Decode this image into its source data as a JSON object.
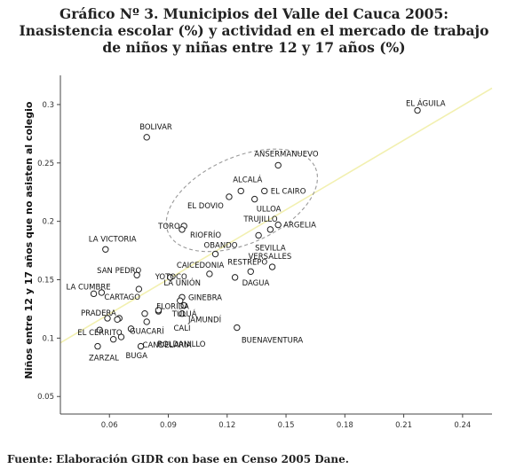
{
  "header": {
    "title_line1": "Gráfico Nº 3. Municipios del Valle del Cauca 2005:",
    "title_line2": "Inasistencia escolar (%) y actividad en el mercado de trabajo",
    "title_line3": "de niños y niñas entre 12 y 17 años (%)"
  },
  "footer": {
    "source": "Fuente: Elaboración GIDR con base en Censo 2005 Dane."
  },
  "colors": {
    "point_stroke": "#222222",
    "fit_line": "#f2f0b0",
    "ellipse": "#999999",
    "axis": "#444444"
  },
  "chart_data": {
    "type": "scatter",
    "title": "",
    "xlabel": "",
    "ylabel": "Niños entre 12 y 17 años que no asisten al colegio",
    "xlim": [
      0.035,
      0.255
    ],
    "ylim": [
      0.035,
      0.325
    ],
    "x_ticks": [
      "0.06",
      "0.09",
      "0.12",
      "0.15",
      "0.18",
      "0.21",
      "0.24"
    ],
    "x_tick_values": [
      0.06,
      0.09,
      0.12,
      0.15,
      0.18,
      0.21,
      0.24
    ],
    "y_ticks": [
      "0.05",
      "0.1",
      "0.15",
      "0.2",
      "0.25",
      "0.3"
    ],
    "y_tick_values": [
      0.05,
      0.1,
      0.15,
      0.2,
      0.25,
      0.3
    ],
    "fit_line": {
      "x": [
        0.035,
        0.255
      ],
      "y": [
        0.096,
        0.314
      ]
    },
    "highlight_ellipse": {
      "cx": 0.1275,
      "cy": 0.218,
      "rx": 0.041,
      "ry": 0.037,
      "angle_deg": -24
    },
    "points": [
      {
        "label": "EL ÁGUILA",
        "x": 0.217,
        "y": 0.295
      },
      {
        "label": "BOLIVAR",
        "x": 0.079,
        "y": 0.272
      },
      {
        "label": "ANSERMANUEVO",
        "x": 0.146,
        "y": 0.248
      },
      {
        "label": "ALCALÁ",
        "x": 0.127,
        "y": 0.226
      },
      {
        "label": "EL CAIRO",
        "x": 0.139,
        "y": 0.226
      },
      {
        "label": "EL DOVIO",
        "x": 0.121,
        "y": 0.221
      },
      {
        "label": "ULLOA",
        "x": 0.134,
        "y": 0.219
      },
      {
        "label": "ARGELIA",
        "x": 0.146,
        "y": 0.197
      },
      {
        "label": "TRUJILLO",
        "x": 0.142,
        "y": 0.193
      },
      {
        "label": "TORO",
        "x": 0.098,
        "y": 0.196
      },
      {
        "label": "RIOFRÍO",
        "x": 0.097,
        "y": 0.193
      },
      {
        "label": "SEVILLA",
        "x": 0.136,
        "y": 0.188
      },
      {
        "label": "LA VICTORIA",
        "x": 0.058,
        "y": 0.176
      },
      {
        "label": "OBANDO",
        "x": 0.114,
        "y": 0.172
      },
      {
        "label": "VERSALLES",
        "x": 0.143,
        "y": 0.161
      },
      {
        "label": "SAN PEDRO",
        "x": 0.074,
        "y": 0.154
      },
      {
        "label": "CAICEDONIA",
        "x": 0.111,
        "y": 0.155
      },
      {
        "label": "RESTREPO",
        "x": 0.132,
        "y": 0.157
      },
      {
        "label": "YOTOCO",
        "x": 0.091,
        "y": 0.152
      },
      {
        "label": "DAGUA",
        "x": 0.124,
        "y": 0.152
      },
      {
        "label": "LA CUMBRE",
        "x": 0.052,
        "y": 0.138
      },
      {
        "label": "CARTAGO",
        "x": 0.056,
        "y": 0.139
      },
      {
        "label": "LA UNIÓN",
        "x": 0.075,
        "y": 0.142
      },
      {
        "label": "GINEBRA",
        "x": 0.097,
        "y": 0.135
      },
      {
        "label": "FLORIDA",
        "x": 0.098,
        "y": 0.128
      },
      {
        "label": "TULUÁ",
        "x": 0.096,
        "y": 0.132
      },
      {
        "label": "PRADERA",
        "x": 0.059,
        "y": 0.117
      },
      {
        "label": "CALI",
        "x": 0.085,
        "y": 0.123
      },
      {
        "label": "JAMUNDÍ",
        "x": 0.097,
        "y": 0.121
      },
      {
        "label": "EL CERRITO",
        "x": 0.065,
        "y": 0.117
      },
      {
        "label": "GUACARÍ",
        "x": 0.078,
        "y": 0.121
      },
      {
        "label": "CANDELARIA",
        "x": 0.071,
        "y": 0.108
      },
      {
        "label": "ROLDANILLO",
        "x": 0.079,
        "y": 0.114
      },
      {
        "label": "BUENAVENTURA",
        "x": 0.125,
        "y": 0.109
      },
      {
        "label": "ZARZAL",
        "x": 0.054,
        "y": 0.093
      },
      {
        "label": "BUGA",
        "x": 0.066,
        "y": 0.101
      },
      {
        "label": "",
        "x": 0.064,
        "y": 0.116
      },
      {
        "label": "",
        "x": 0.055,
        "y": 0.107
      },
      {
        "label": "",
        "x": 0.076,
        "y": 0.093
      },
      {
        "label": "",
        "x": 0.085,
        "y": 0.124
      },
      {
        "label": "",
        "x": 0.062,
        "y": 0.099
      }
    ]
  }
}
